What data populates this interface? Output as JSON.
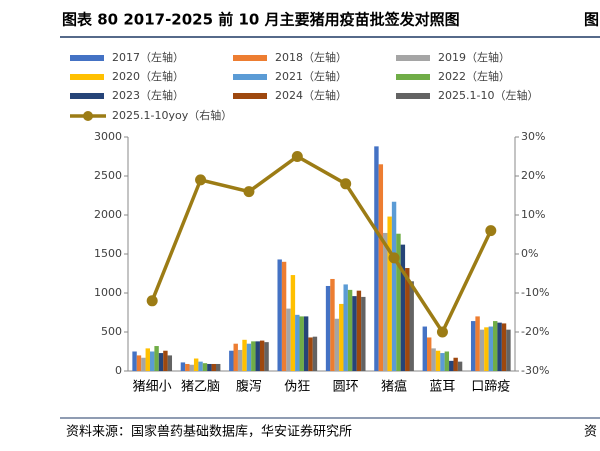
{
  "chart_data": {
    "type": "bar",
    "title": "图表 80 2017-2025 前 10 月主要猪用疫苗批签发对照图",
    "source": "资料来源：国家兽药基础数据库，华安证券研究所",
    "edge_texts": [
      "图",
      "资"
    ],
    "categories": [
      "猪细小",
      "猪乙脑",
      "腹泻",
      "伪狂",
      "圆环",
      "猪瘟",
      "蓝耳",
      "口蹄疫"
    ],
    "series": [
      {
        "name": "2017（左轴）",
        "color": "#4472c4",
        "values": [
          250,
          110,
          260,
          1430,
          1090,
          2880,
          570,
          640
        ]
      },
      {
        "name": "2018（左轴）",
        "color": "#ed7d31",
        "values": [
          200,
          90,
          350,
          1400,
          1180,
          2650,
          430,
          700
        ]
      },
      {
        "name": "2019（左轴）",
        "color": "#a5a5a5",
        "values": [
          170,
          80,
          270,
          800,
          670,
          1770,
          290,
          530
        ]
      },
      {
        "name": "2020（左轴）",
        "color": "#ffc000",
        "values": [
          290,
          160,
          400,
          1230,
          860,
          1980,
          260,
          560
        ]
      },
      {
        "name": "2021（左轴）",
        "color": "#5b9bd5",
        "values": [
          250,
          120,
          350,
          720,
          1110,
          2170,
          230,
          570
        ]
      },
      {
        "name": "2022（左轴）",
        "color": "#70ad47",
        "values": [
          320,
          100,
          380,
          700,
          1040,
          1760,
          250,
          640
        ]
      },
      {
        "name": "2023（左轴）",
        "color": "#264478",
        "values": [
          230,
          90,
          380,
          700,
          960,
          1620,
          130,
          620
        ]
      },
      {
        "name": "2024（左轴）",
        "color": "#9e480e",
        "values": [
          260,
          90,
          390,
          430,
          1030,
          1320,
          170,
          610
        ]
      },
      {
        "name": "2025.1-10（左轴）",
        "color": "#636363",
        "values": [
          200,
          90,
          370,
          440,
          950,
          1150,
          120,
          530
        ]
      },
      {
        "name": "2025.1-10yoy（右轴）",
        "color": "#9c7c15",
        "type": "line",
        "axis": "y2",
        "values": [
          -12,
          19,
          16,
          25,
          18,
          -1,
          -20,
          6
        ]
      }
    ],
    "ylim": [
      0,
      3000
    ],
    "yticks": [
      0,
      500,
      1000,
      1500,
      2000,
      2500,
      3000
    ],
    "y2lim": [
      -30,
      30
    ],
    "y2ticks": [
      {
        "value": -30,
        "label": "-30%"
      },
      {
        "value": -20,
        "label": "-20%"
      },
      {
        "value": -10,
        "label": "-10%"
      },
      {
        "value": 0,
        "label": "0%"
      },
      {
        "value": 10,
        "label": "10%"
      },
      {
        "value": 20,
        "label": "20%"
      },
      {
        "value": 30,
        "label": "30%"
      }
    ],
    "grid": false
  }
}
